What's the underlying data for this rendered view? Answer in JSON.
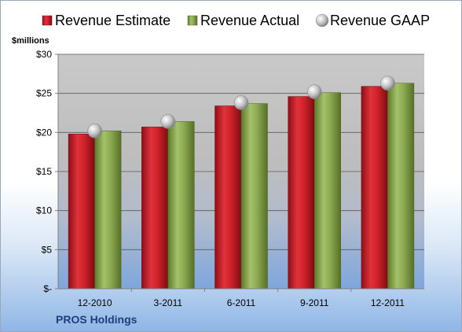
{
  "colors": {
    "estimate": "#c8202a",
    "actual": "#8aa84e",
    "gaap": "#c0c0c0"
  },
  "unit_label": "$millions",
  "company": "PROS Holdings",
  "chart_data": {
    "type": "bar",
    "categories": [
      "12-2010",
      "3-2011",
      "6-2011",
      "9-2011",
      "12-2011"
    ],
    "series": [
      {
        "name": "Revenue Estimate",
        "values": [
          19.8,
          20.7,
          23.4,
          24.6,
          25.9
        ]
      },
      {
        "name": "Revenue Actual",
        "values": [
          20.2,
          21.4,
          23.7,
          25.1,
          26.3
        ]
      },
      {
        "name": "Revenue GAAP",
        "values": [
          20.2,
          21.4,
          23.8,
          25.2,
          26.3
        ],
        "style": "marker"
      }
    ],
    "ylim": [
      0,
      30
    ],
    "yticks": [
      0,
      5,
      10,
      15,
      20,
      25,
      30
    ],
    "ytick_labels": [
      "$-",
      "$5",
      "$10",
      "$15",
      "$20",
      "$25",
      "$30"
    ],
    "legend": "top",
    "grid": true
  }
}
